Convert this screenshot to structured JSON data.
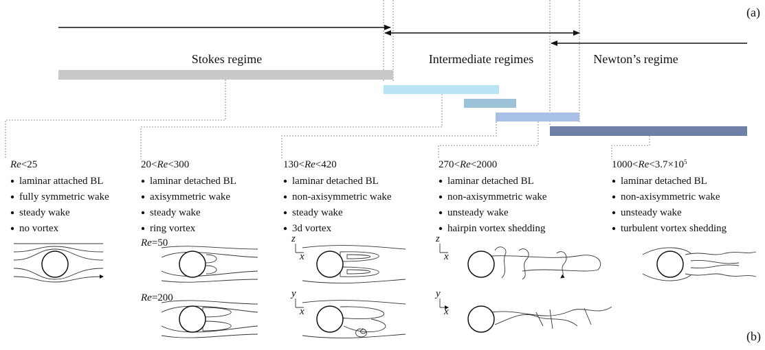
{
  "labels": {
    "a": "(a)",
    "b": "(b)"
  },
  "regimes": [
    "Stokes regime",
    "Intermediate regimes",
    "Newton’s regime"
  ],
  "columns": [
    {
      "heading": [
        {
          "text": "Re",
          "italic": true
        },
        {
          "text": "<25"
        }
      ],
      "bullets": [
        "laminar attached BL",
        "fully symmetric wake",
        "steady wake",
        "no vortex"
      ]
    },
    {
      "heading": [
        {
          "text": "20<"
        },
        {
          "text": "Re",
          "italic": true
        },
        {
          "text": "<300"
        }
      ],
      "bullets": [
        "laminar detached BL",
        "axisymmetric wake",
        "steady wake",
        "ring vortex"
      ]
    },
    {
      "heading": [
        {
          "text": "130<"
        },
        {
          "text": "Re",
          "italic": true
        },
        {
          "text": "<420"
        }
      ],
      "bullets": [
        "laminar detached BL",
        "non-axisymmetric wake",
        "steady wake",
        "3d vortex"
      ]
    },
    {
      "heading": [
        {
          "text": "270<"
        },
        {
          "text": "Re",
          "italic": true
        },
        {
          "text": "<2000"
        }
      ],
      "bullets": [
        "laminar detached BL",
        "non-axisymmetric wake",
        "unsteady wake",
        "hairpin vortex shedding"
      ]
    },
    {
      "heading": [
        {
          "text": "1000<"
        },
        {
          "text": "Re",
          "italic": true
        },
        {
          "text": "<3.7×10"
        },
        {
          "text": "5",
          "sup": true
        }
      ],
      "bullets": [
        "laminar detached BL",
        "non-axisymmetric wake",
        "unsteady wake",
        "turbulent vortex shedding"
      ]
    }
  ],
  "flow_labels": [
    [
      {
        "text": "Re",
        "italic": true
      },
      {
        "text": "=50"
      }
    ],
    [
      {
        "text": "Re",
        "italic": true
      },
      {
        "text": "=200"
      }
    ]
  ],
  "axes": [
    "z",
    "x",
    "y",
    "x",
    "z",
    "x",
    "y",
    "x"
  ]
}
